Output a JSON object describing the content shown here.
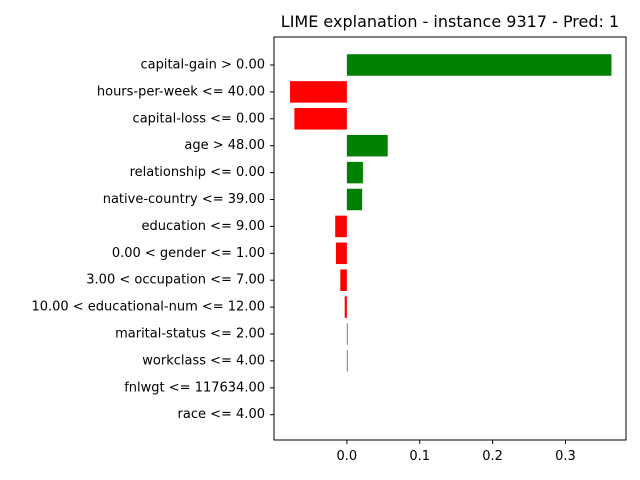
{
  "chart_data": {
    "type": "bar",
    "orientation": "horizontal",
    "title": "LIME explanation - instance 9317 - Pred: 1",
    "xlabel": "",
    "ylabel": "",
    "xlim": [
      -0.1,
      0.383
    ],
    "xticks": [
      0.0,
      0.1,
      0.2,
      0.3
    ],
    "xtick_labels": [
      "0.0",
      "0.1",
      "0.2",
      "0.3"
    ],
    "grid": false,
    "positive_color": "#008000",
    "negative_color": "#ff0000",
    "categories": [
      "capital-gain > 0.00",
      "hours-per-week <= 40.00",
      "capital-loss <= 0.00",
      "age > 48.00",
      "relationship <= 0.00",
      "native-country <= 39.00",
      "education <= 9.00",
      "0.00 < gender <= 1.00",
      "3.00 < occupation <= 7.00",
      "10.00 < educational-num <= 12.00",
      "marital-status <= 2.00",
      "workclass <= 4.00",
      "fnlwgt <= 117634.00",
      "race <= 4.00"
    ],
    "values": [
      0.363,
      -0.078,
      -0.072,
      0.056,
      0.022,
      0.021,
      -0.016,
      -0.015,
      -0.009,
      -0.003,
      0.001,
      0.001,
      0.0,
      0.0
    ]
  }
}
